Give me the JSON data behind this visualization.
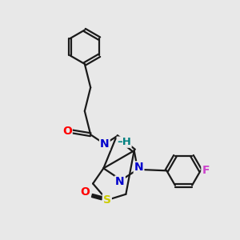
{
  "bg_color": "#e8e8e8",
  "bond_color": "#1a1a1a",
  "bond_width": 1.6,
  "atom_colors": {
    "O": "#ff0000",
    "N": "#0000cc",
    "S": "#cccc00",
    "F": "#cc44cc",
    "H": "#008080",
    "C": "#1a1a1a"
  },
  "font_size": 9.5,
  "fig_width": 3.0,
  "fig_height": 3.0,
  "dpi": 100
}
